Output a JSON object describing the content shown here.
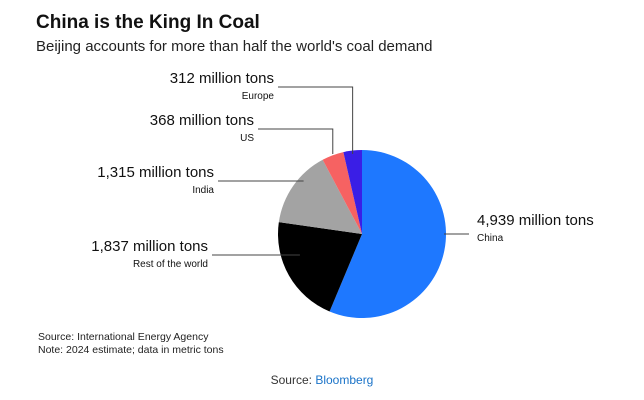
{
  "chart_data": {
    "type": "pie",
    "title": "China is the King In Coal",
    "subtitle": "Beijing accounts for more than half the world's coal demand",
    "slices": [
      {
        "label": "China",
        "value": 4939,
        "value_label": "4,939 million tons",
        "color": "#1e78ff"
      },
      {
        "label": "Rest of the world",
        "value": 1837,
        "value_label": "1,837 million tons",
        "color": "#000000"
      },
      {
        "label": "India",
        "value": 1315,
        "value_label": "1,315 million tons",
        "color": "#a3a3a3"
      },
      {
        "label": "US",
        "value": 368,
        "value_label": "368 million tons",
        "color": "#f66262"
      },
      {
        "label": "Europe",
        "value": 312,
        "value_label": "312 million tons",
        "color": "#3a1ee6"
      }
    ],
    "start_angle": "12 o'clock",
    "direction": "clockwise",
    "legend": "none; slices labeled with leader lines"
  },
  "footnotes": {
    "source": "Source: International Energy Agency",
    "note": "Note: 2024 estimate; data in metric tons"
  },
  "page": {
    "source_prefix": "Source: ",
    "source_link": "Bloomberg",
    "link_color": "#1a73c8"
  }
}
